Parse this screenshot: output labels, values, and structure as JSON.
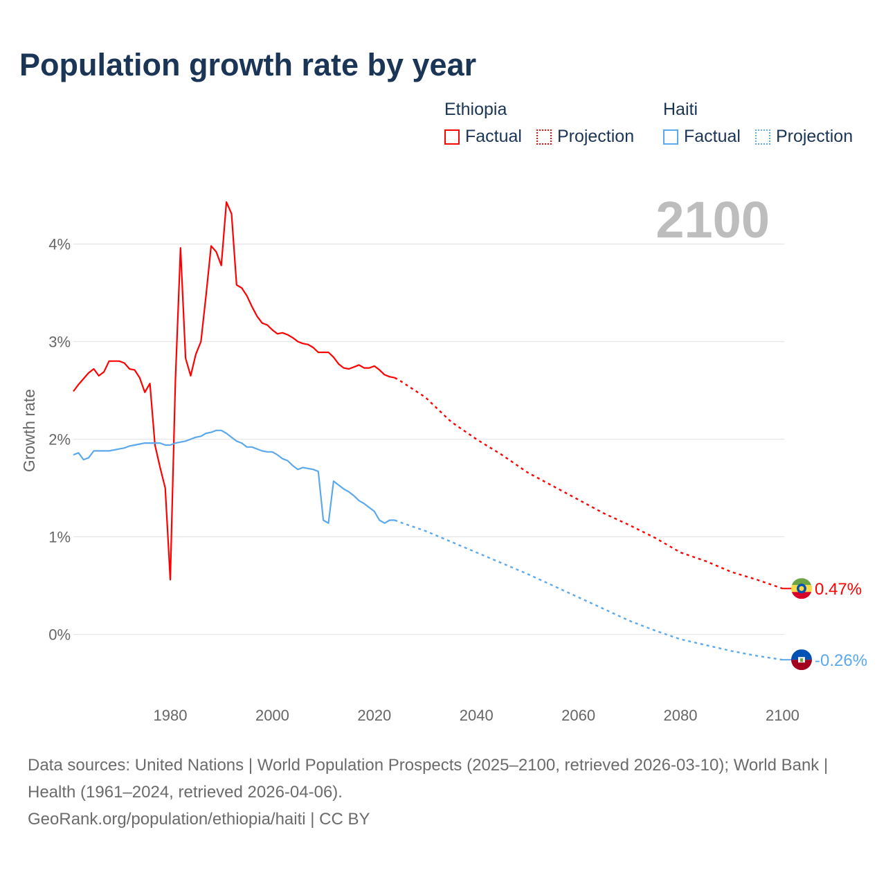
{
  "title": "Population growth rate by year",
  "legend": {
    "groups": [
      {
        "name": "Ethiopia",
        "color": "#ff0000",
        "factual": "Factual",
        "projection": "Projection"
      },
      {
        "name": "Haiti",
        "color": "#5ba8ec",
        "factual": "Factual",
        "projection": "Projection"
      }
    ]
  },
  "year_display": "2100",
  "footer": {
    "sources": "Data sources: United Nations | World Population Prospects (2025–2100, retrieved 2026-03-10); World Bank | Health (1961–2024, retrieved 2026-04-06).",
    "credit": "GeoRank.org/population/ethiopia/haiti | CC BY"
  },
  "chart_data": {
    "type": "line",
    "title": "Population growth rate by year",
    "xlabel": "",
    "ylabel": "Growth rate",
    "xlim": [
      1961,
      2100
    ],
    "ylim": [
      -0.6,
      4.6
    ],
    "xticks": [
      1980,
      2000,
      2020,
      2040,
      2060,
      2080,
      2100
    ],
    "yticks": [
      0,
      1,
      2,
      3,
      4
    ],
    "ytick_labels": [
      "0%",
      "1%",
      "2%",
      "3%",
      "4%"
    ],
    "grid": true,
    "series": [
      {
        "name": "Ethiopia",
        "color": "#ff0000",
        "factual": {
          "x": [
            1961,
            1962,
            1963,
            1964,
            1965,
            1966,
            1967,
            1968,
            1969,
            1970,
            1971,
            1972,
            1973,
            1974,
            1975,
            1976,
            1977,
            1978,
            1979,
            1980,
            1981,
            1982,
            1983,
            1984,
            1985,
            1986,
            1987,
            1988,
            1989,
            1990,
            1991,
            1992,
            1993,
            1994,
            1995,
            1996,
            1997,
            1998,
            1999,
            2000,
            2001,
            2002,
            2003,
            2004,
            2005,
            2006,
            2007,
            2008,
            2009,
            2010,
            2011,
            2012,
            2013,
            2014,
            2015,
            2016,
            2017,
            2018,
            2019,
            2020,
            2021,
            2022,
            2023,
            2024
          ],
          "y": [
            2.49,
            2.56,
            2.62,
            2.68,
            2.72,
            2.65,
            2.69,
            2.8,
            2.8,
            2.8,
            2.78,
            2.72,
            2.71,
            2.63,
            2.48,
            2.57,
            1.94,
            1.71,
            1.5,
            0.56,
            2.6,
            3.96,
            2.83,
            2.65,
            2.87,
            3.0,
            3.47,
            3.98,
            3.92,
            3.78,
            4.43,
            4.31,
            3.58,
            3.55,
            3.47,
            3.36,
            3.26,
            3.19,
            3.17,
            3.12,
            3.08,
            3.09,
            3.07,
            3.04,
            3.0,
            2.98,
            2.97,
            2.94,
            2.89,
            2.89,
            2.89,
            2.84,
            2.77,
            2.73,
            2.72,
            2.74,
            2.76,
            2.73,
            2.73,
            2.75,
            2.71,
            2.66,
            2.64,
            2.63
          ]
        },
        "projection": {
          "x": [
            2024,
            2025,
            2030,
            2035,
            2040,
            2045,
            2050,
            2055,
            2060,
            2065,
            2070,
            2075,
            2080,
            2085,
            2090,
            2095,
            2100
          ],
          "y": [
            2.63,
            2.6,
            2.43,
            2.18,
            2.0,
            1.84,
            1.66,
            1.52,
            1.38,
            1.24,
            1.12,
            0.99,
            0.84,
            0.75,
            0.64,
            0.56,
            0.47
          ]
        },
        "end_label": "0.47%"
      },
      {
        "name": "Haiti",
        "color": "#5ba8ec",
        "factual": {
          "x": [
            1961,
            1962,
            1963,
            1964,
            1965,
            1966,
            1967,
            1968,
            1969,
            1970,
            1971,
            1972,
            1973,
            1974,
            1975,
            1976,
            1977,
            1978,
            1979,
            1980,
            1981,
            1982,
            1983,
            1984,
            1985,
            1986,
            1987,
            1988,
            1989,
            1990,
            1991,
            1992,
            1993,
            1994,
            1995,
            1996,
            1997,
            1998,
            1999,
            2000,
            2001,
            2002,
            2003,
            2004,
            2005,
            2006,
            2007,
            2008,
            2009,
            2010,
            2011,
            2012,
            2013,
            2014,
            2015,
            2016,
            2017,
            2018,
            2019,
            2020,
            2021,
            2022,
            2023,
            2024
          ],
          "y": [
            1.84,
            1.86,
            1.79,
            1.81,
            1.88,
            1.88,
            1.88,
            1.88,
            1.89,
            1.9,
            1.91,
            1.93,
            1.94,
            1.95,
            1.96,
            1.96,
            1.96,
            1.96,
            1.94,
            1.94,
            1.96,
            1.97,
            1.98,
            2.0,
            2.02,
            2.03,
            2.06,
            2.07,
            2.09,
            2.09,
            2.06,
            2.02,
            1.98,
            1.96,
            1.92,
            1.92,
            1.9,
            1.88,
            1.87,
            1.87,
            1.84,
            1.8,
            1.78,
            1.73,
            1.69,
            1.71,
            1.7,
            1.69,
            1.67,
            1.17,
            1.14,
            1.57,
            1.53,
            1.49,
            1.46,
            1.42,
            1.37,
            1.34,
            1.3,
            1.26,
            1.17,
            1.14,
            1.17,
            1.17
          ]
        },
        "projection": {
          "x": [
            2024,
            2025,
            2030,
            2035,
            2040,
            2045,
            2050,
            2055,
            2060,
            2065,
            2070,
            2075,
            2080,
            2085,
            2090,
            2095,
            2100
          ],
          "y": [
            1.17,
            1.15,
            1.06,
            0.95,
            0.84,
            0.73,
            0.62,
            0.5,
            0.38,
            0.26,
            0.14,
            0.04,
            -0.05,
            -0.11,
            -0.17,
            -0.22,
            -0.26
          ]
        },
        "end_label": "-0.26%"
      }
    ]
  }
}
